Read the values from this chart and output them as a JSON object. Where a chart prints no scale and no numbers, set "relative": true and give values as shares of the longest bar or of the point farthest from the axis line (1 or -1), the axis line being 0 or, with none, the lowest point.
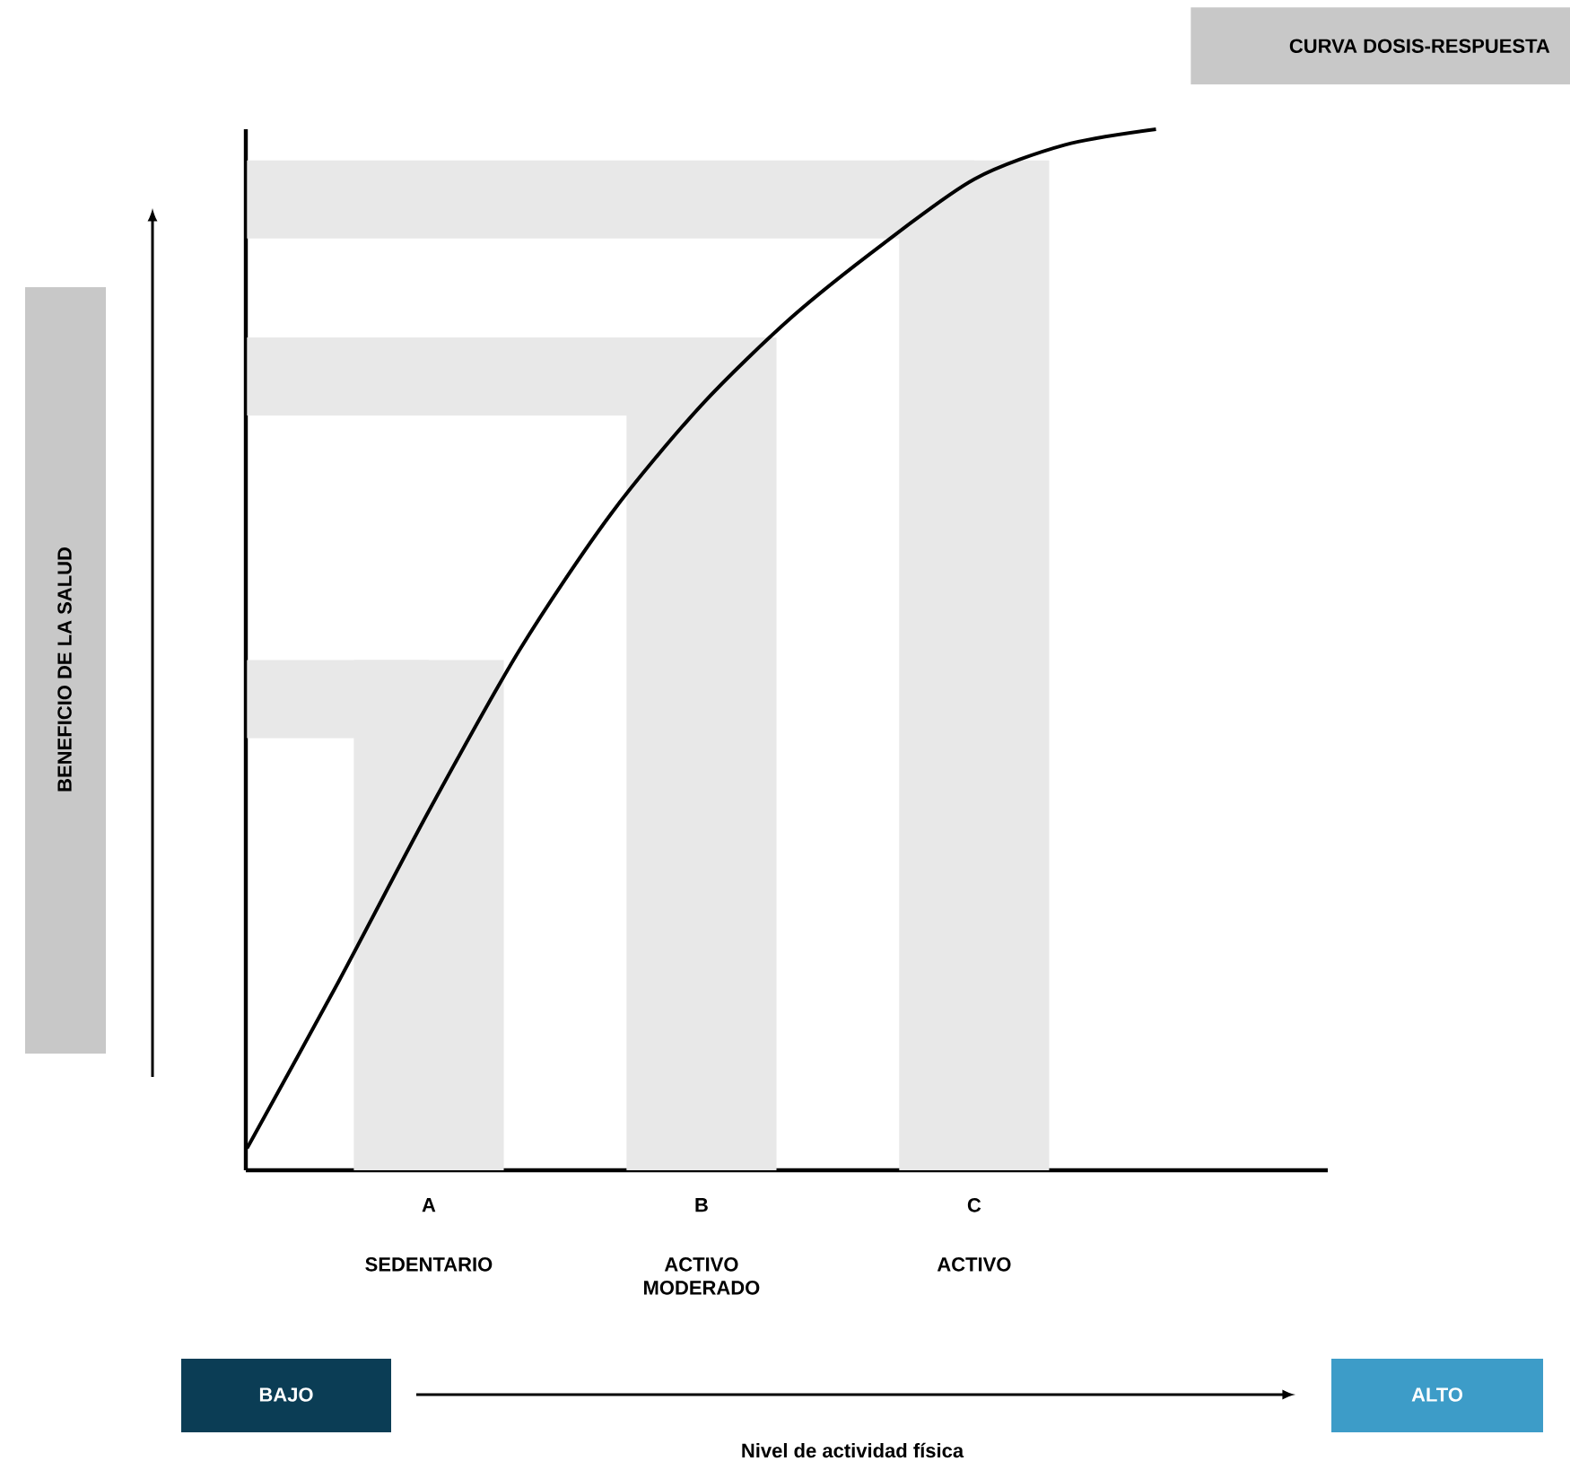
{
  "chart_data": {
    "type": "bar",
    "relative": true,
    "categories": [
      null,
      null,
      "A",
      null,
      null,
      "B",
      null,
      null,
      "C",
      null,
      null,
      null
    ],
    "series": [
      {
        "color": "#e8e8e8",
        "values": [
          null,
          null,
          0.49,
          null,
          null,
          0.8,
          null,
          null,
          0.97,
          null,
          null,
          null
        ]
      },
      {
        "type": "line",
        "color": "#e8e8e8",
        "values": [
          0.4525,
          0.4525,
          0.4525,
          null,
          null,
          null,
          null,
          null,
          null,
          null,
          null,
          null
        ]
      },
      {
        "type": "line",
        "color": "#e8e8e8",
        "values": [
          0.7625,
          0.7625,
          0.7625,
          0.7625,
          0.7625,
          0.7625,
          null,
          null,
          null,
          null,
          null,
          null
        ]
      },
      {
        "type": "line",
        "color": "#e8e8e8",
        "values": [
          0.9325,
          0.9325,
          0.9325,
          0.9325,
          0.9325,
          0.9325,
          0.9325,
          0.9325,
          0.9325,
          null,
          null,
          null
        ]
      },
      {
        "type": "line",
        "name": "CURVA DOSIS-RESPUESTA",
        "color": "#000000",
        "values": [
          0.021,
          0.18,
          0.345,
          0.5,
          0.63,
          0.735,
          0.82,
          0.89,
          0.952,
          0.985,
          1.0,
          null
        ]
      }
    ],
    "annotations": [
      "SEDENTARIO",
      "ACTIVO MODERADO",
      "ACTIVO",
      "BAJO",
      "ALTO",
      "Nivel de actividad física",
      "BENEFICIO DE LA SALUD"
    ]
  }
}
